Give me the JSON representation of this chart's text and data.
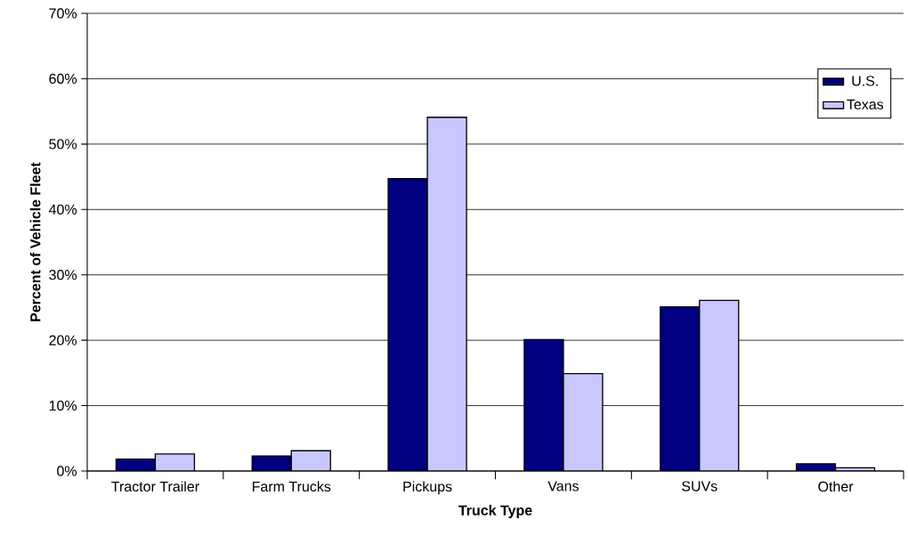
{
  "chart_data": {
    "type": "bar",
    "xlabel": "Truck Type",
    "ylabel": "Percent of Vehicle Fleet",
    "categories": [
      "Tractor Trailer",
      "Farm Trucks",
      "Pickups",
      "Vans",
      "SUVs",
      "Other"
    ],
    "series": [
      {
        "name": "U.S.",
        "color": "#000080",
        "values": [
          1.8,
          2.3,
          44.7,
          20.1,
          25.1,
          1.1
        ]
      },
      {
        "name": "Texas",
        "color": "#c8c8ff",
        "values": [
          2.6,
          3.1,
          54.1,
          14.9,
          26.1,
          0.5
        ]
      }
    ],
    "ylim": [
      0,
      70
    ],
    "yticks": [
      {
        "value": 0,
        "label": "0%"
      },
      {
        "value": 10,
        "label": "10%"
      },
      {
        "value": 20,
        "label": "20%"
      },
      {
        "value": 30,
        "label": "30%"
      },
      {
        "value": 40,
        "label": "40%"
      },
      {
        "value": 50,
        "label": "50%"
      },
      {
        "value": 60,
        "label": "60%"
      },
      {
        "value": 70,
        "label": "70%"
      }
    ],
    "grid": "y",
    "legend": "top right"
  }
}
